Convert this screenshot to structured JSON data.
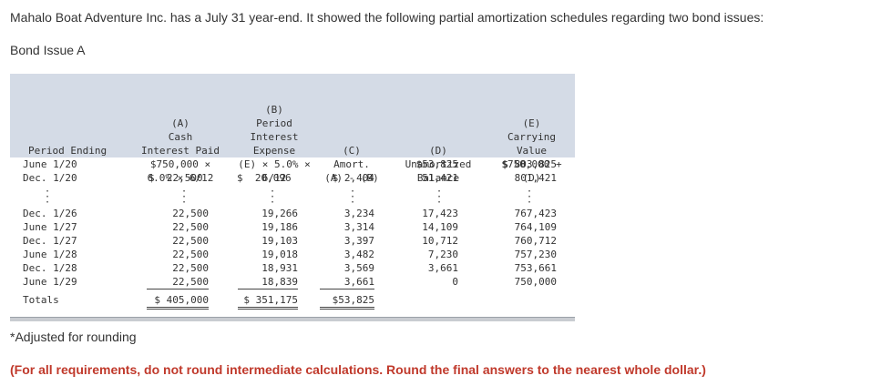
{
  "intro": "Mahalo Boat Adventure Inc. has a July 31 year-end. It showed the following partial amortization schedules regarding two bond issues:",
  "subhead": "Bond Issue A",
  "headers": {
    "period": "Period Ending",
    "a": [
      "(A)",
      "Cash",
      "Interest Paid",
      "$750,000 ×",
      "6.0% × 6/12"
    ],
    "b": [
      "(B)",
      "Period",
      "Interest",
      "Expense",
      "(E) × 5.0% ×",
      "6/12"
    ],
    "c": [
      "(C)",
      "Amort.",
      "(A) - (B)"
    ],
    "d": [
      "(D)",
      "Unamortized",
      "Balance"
    ],
    "e": [
      "(E)",
      "Carrying",
      "Value",
      "$750,000 +",
      "(D)"
    ]
  },
  "rows": [
    {
      "period": "June 1/20",
      "a": "",
      "b": "",
      "c": "",
      "d": "$53,825",
      "e": "$ 803,825"
    },
    {
      "period": "Dec. 1/20",
      "a": "$  22,500",
      "b": "$  20,096",
      "c": "$ 2,404",
      "d": "51,421",
      "e": "801,421"
    },
    {
      "period": "Dec. 1/26",
      "a": "22,500",
      "b": "19,266",
      "c": "3,234",
      "d": "17,423",
      "e": "767,423"
    },
    {
      "period": "June 1/27",
      "a": "22,500",
      "b": "19,186",
      "c": "3,314",
      "d": "14,109",
      "e": "764,109"
    },
    {
      "period": "Dec. 1/27",
      "a": "22,500",
      "b": "19,103",
      "c": "3,397",
      "d": "10,712",
      "e": "760,712"
    },
    {
      "period": "June 1/28",
      "a": "22,500",
      "b": "19,018",
      "c": "3,482",
      "d": "7,230",
      "e": "757,230"
    },
    {
      "period": "Dec. 1/28",
      "a": "22,500",
      "b": "18,931",
      "c": "3,569",
      "d": "3,661",
      "e": "753,661"
    },
    {
      "period": "June 1/29",
      "a": "22,500",
      "b": "18,839",
      "c": "3,661",
      "d": "0",
      "e": "750,000"
    }
  ],
  "totals": {
    "label": "Totals",
    "a": "$ 405,000",
    "b": "$ 351,175",
    "c": "$53,825"
  },
  "footnote": "*Adjusted for rounding",
  "instruction": "(For all requirements, do not round intermediate calculations. Round the final answers to the nearest whole dollar.)"
}
